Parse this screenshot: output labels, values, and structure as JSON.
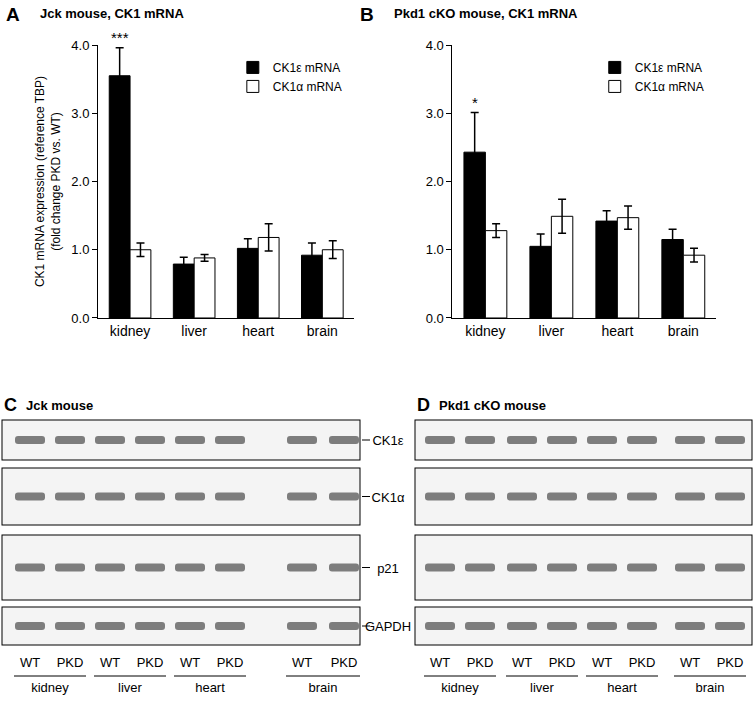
{
  "chart_data": [
    {
      "type": "bar",
      "panel": "A",
      "title": "Jck mouse, CK1 mRNA",
      "y_label": [
        "CK1 mRNA expression (reference TBP)",
        "(fold change PKD vs. WT)"
      ],
      "categories": [
        "kidney",
        "liver",
        "heart",
        "brain"
      ],
      "series": [
        {
          "name": "CK1ε mRNA",
          "color": "#000000",
          "values": [
            3.55,
            0.79,
            1.02,
            0.92
          ],
          "errors": [
            0.41,
            0.1,
            0.14,
            0.18
          ]
        },
        {
          "name": "CK1α mRNA",
          "color": "#ffffff",
          "values": [
            1.0,
            0.88,
            1.18,
            1.0
          ],
          "errors": [
            0.1,
            0.05,
            0.2,
            0.13
          ]
        }
      ],
      "ylim": [
        0,
        4
      ],
      "yticks": [
        {
          "value": 0,
          "label": "0.0"
        },
        {
          "value": 1,
          "label": "1.0"
        },
        {
          "value": 2,
          "label": "2.0"
        },
        {
          "value": 3,
          "label": "3.0"
        },
        {
          "value": 4,
          "label": "4.0"
        }
      ],
      "legend": "upper right",
      "grid": false,
      "annotations": [
        {
          "text": "***",
          "category": "kidney",
          "series": "CK1ε mRNA"
        }
      ]
    },
    {
      "type": "bar",
      "panel": "B",
      "title": "Pkd1 cKO mouse, CK1 mRNA",
      "categories": [
        "kidney",
        "liver",
        "heart",
        "brain"
      ],
      "series": [
        {
          "name": "CK1ε mRNA",
          "color": "#000000",
          "values": [
            2.43,
            1.05,
            1.42,
            1.15
          ],
          "errors": [
            0.58,
            0.18,
            0.15,
            0.15
          ]
        },
        {
          "name": "CK1α mRNA",
          "color": "#ffffff",
          "values": [
            1.28,
            1.49,
            1.47,
            0.92
          ],
          "errors": [
            0.1,
            0.25,
            0.17,
            0.1
          ]
        }
      ],
      "ylim": [
        0,
        4
      ],
      "yticks": [
        {
          "value": 0,
          "label": "0.0"
        },
        {
          "value": 1,
          "label": "1.0"
        },
        {
          "value": 2,
          "label": "2.0"
        },
        {
          "value": 3,
          "label": "3.0"
        },
        {
          "value": 4,
          "label": "4.0"
        }
      ],
      "legend": "upper right",
      "grid": false,
      "annotations": [
        {
          "text": "*",
          "category": "kidney",
          "series": "CK1ε mRNA"
        }
      ]
    }
  ],
  "blots": {
    "panels": [
      {
        "panel": "C",
        "title": "Jck mouse"
      },
      {
        "panel": "D",
        "title": "Pkd1 cKO mouse"
      }
    ],
    "proteins": [
      "CK1ε",
      "CK1α",
      "p21",
      "GAPDH"
    ],
    "lanes": [
      "WT",
      "PKD"
    ],
    "tissues": [
      "kidney",
      "liver",
      "heart",
      "brain"
    ]
  }
}
